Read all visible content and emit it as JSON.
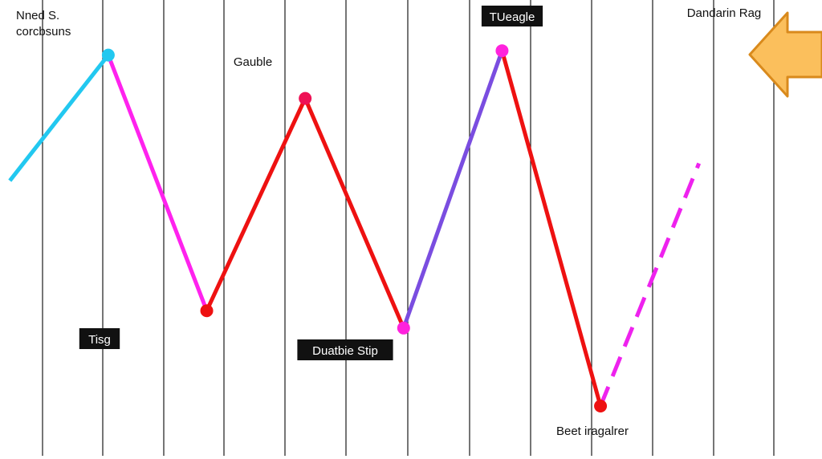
{
  "chart_data": {
    "type": "line",
    "x": [
      0,
      1,
      2,
      3,
      4,
      5,
      6,
      7,
      8
    ],
    "xlim": [
      -0.1,
      8.25
    ],
    "ylim": [
      0,
      10
    ],
    "grid": "vertical",
    "segments": [
      {
        "from": 0,
        "to": 1,
        "color": "#22c8f0",
        "style": "solid"
      },
      {
        "from": 1,
        "to": 2,
        "color": "#ff22ee",
        "style": "solid"
      },
      {
        "from": 2,
        "to": 3,
        "color": "#ee1111",
        "style": "solid"
      },
      {
        "from": 3,
        "to": 4,
        "color": "#ee1111",
        "style": "solid"
      },
      {
        "from": 4,
        "to": 5,
        "color": "#7a4de0",
        "style": "solid"
      },
      {
        "from": 5,
        "to": 6,
        "color": "#ee1111",
        "style": "solid"
      },
      {
        "from": 6,
        "to": 7,
        "color": "#ee22ee",
        "style": "dashed"
      }
    ],
    "points": [
      {
        "x": 0,
        "y": 6.2,
        "marker": false
      },
      {
        "x": 1,
        "y": 9.1,
        "marker": true,
        "color": "#22c8f0",
        "label": "Nned S.\ncorcbsuns",
        "label_boxed": false
      },
      {
        "x": 2,
        "y": 3.2,
        "marker": true,
        "color": "#ee1111",
        "label": "Tisg",
        "label_boxed": true
      },
      {
        "x": 3,
        "y": 8.1,
        "marker": true,
        "color": "#ee1155",
        "label": "Gauble",
        "label_boxed": false
      },
      {
        "x": 4,
        "y": 2.8,
        "marker": true,
        "color": "#ff22dd",
        "label": "Duatbie Stip",
        "label_boxed": true
      },
      {
        "x": 5,
        "y": 9.2,
        "marker": true,
        "color": "#ff22dd",
        "label": "TUeagle",
        "label_boxed": true
      },
      {
        "x": 6,
        "y": 1.0,
        "marker": true,
        "color": "#ee1111",
        "label": "Beet iragalrer",
        "label_boxed": false
      },
      {
        "x": 7,
        "y": 6.6,
        "marker": false
      }
    ],
    "annotations": [
      {
        "text": "Dandarin Rag",
        "arrow": "left",
        "arrow_color": "#fbbf5c",
        "arrow_stroke": "#d98a1c"
      }
    ]
  }
}
